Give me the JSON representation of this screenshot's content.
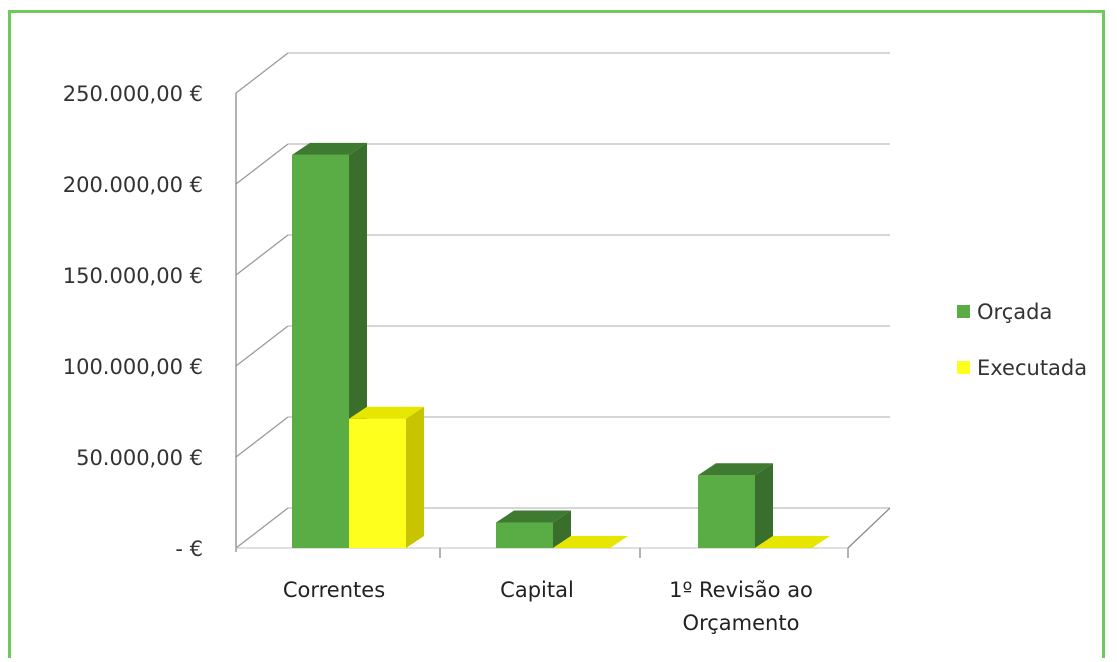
{
  "chart_data": {
    "type": "bar",
    "categories": [
      [
        "Correntes"
      ],
      [
        "Capital"
      ],
      [
        "1º Revisão ao",
        "Orçamento"
      ]
    ],
    "series": [
      {
        "name": "Orçada",
        "values": [
          216000,
          14000,
          40000
        ]
      },
      {
        "name": "Executada",
        "values": [
          71000,
          0,
          0
        ]
      }
    ],
    "ylim": [
      0,
      250000
    ],
    "y_ticks": [
      {
        "value": 0,
        "label": "-   €"
      },
      {
        "value": 50000,
        "label": "50.000,00 €"
      },
      {
        "value": 100000,
        "label": "100.000,00 €"
      },
      {
        "value": 150000,
        "label": "150.000,00 €"
      },
      {
        "value": 200000,
        "label": "200.000,00 €"
      },
      {
        "value": 250000,
        "label": "250.000,00 €"
      }
    ],
    "grid": true,
    "legend_position": "right",
    "three_d": true,
    "colors": {
      "orcada_front": "#5aac45",
      "orcada_side": "#3a6e2c",
      "orcada_top": "#3f7a31",
      "executada_front": "#ffff1e",
      "executada_side": "#c8c400",
      "executada_top": "#e6e600",
      "border": "#6ec95b"
    }
  }
}
